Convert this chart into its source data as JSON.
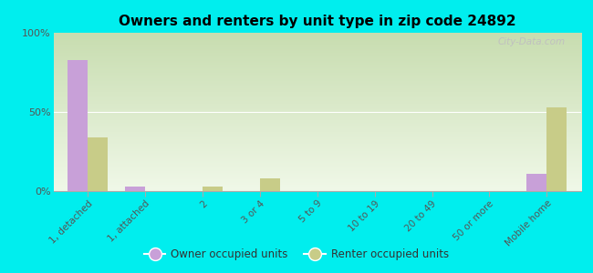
{
  "title": "Owners and renters by unit type in zip code 24892",
  "categories": [
    "1, detached",
    "1, attached",
    "2",
    "3 or 4",
    "5 to 9",
    "10 to 19",
    "20 to 49",
    "50 or more",
    "Mobile home"
  ],
  "owner_values": [
    83,
    3,
    0,
    0,
    0,
    0,
    0,
    0,
    11
  ],
  "renter_values": [
    34,
    0,
    3,
    8,
    0,
    0,
    0,
    0,
    53
  ],
  "owner_color": "#c8a0d8",
  "renter_color": "#c8cc88",
  "background_color": "#00eeee",
  "ylim": [
    0,
    100
  ],
  "yticks": [
    0,
    50,
    100
  ],
  "ytick_labels": [
    "0%",
    "50%",
    "100%"
  ],
  "bar_width": 0.35,
  "legend_owner": "Owner occupied units",
  "legend_renter": "Renter occupied units",
  "watermark": "City-Data.com"
}
